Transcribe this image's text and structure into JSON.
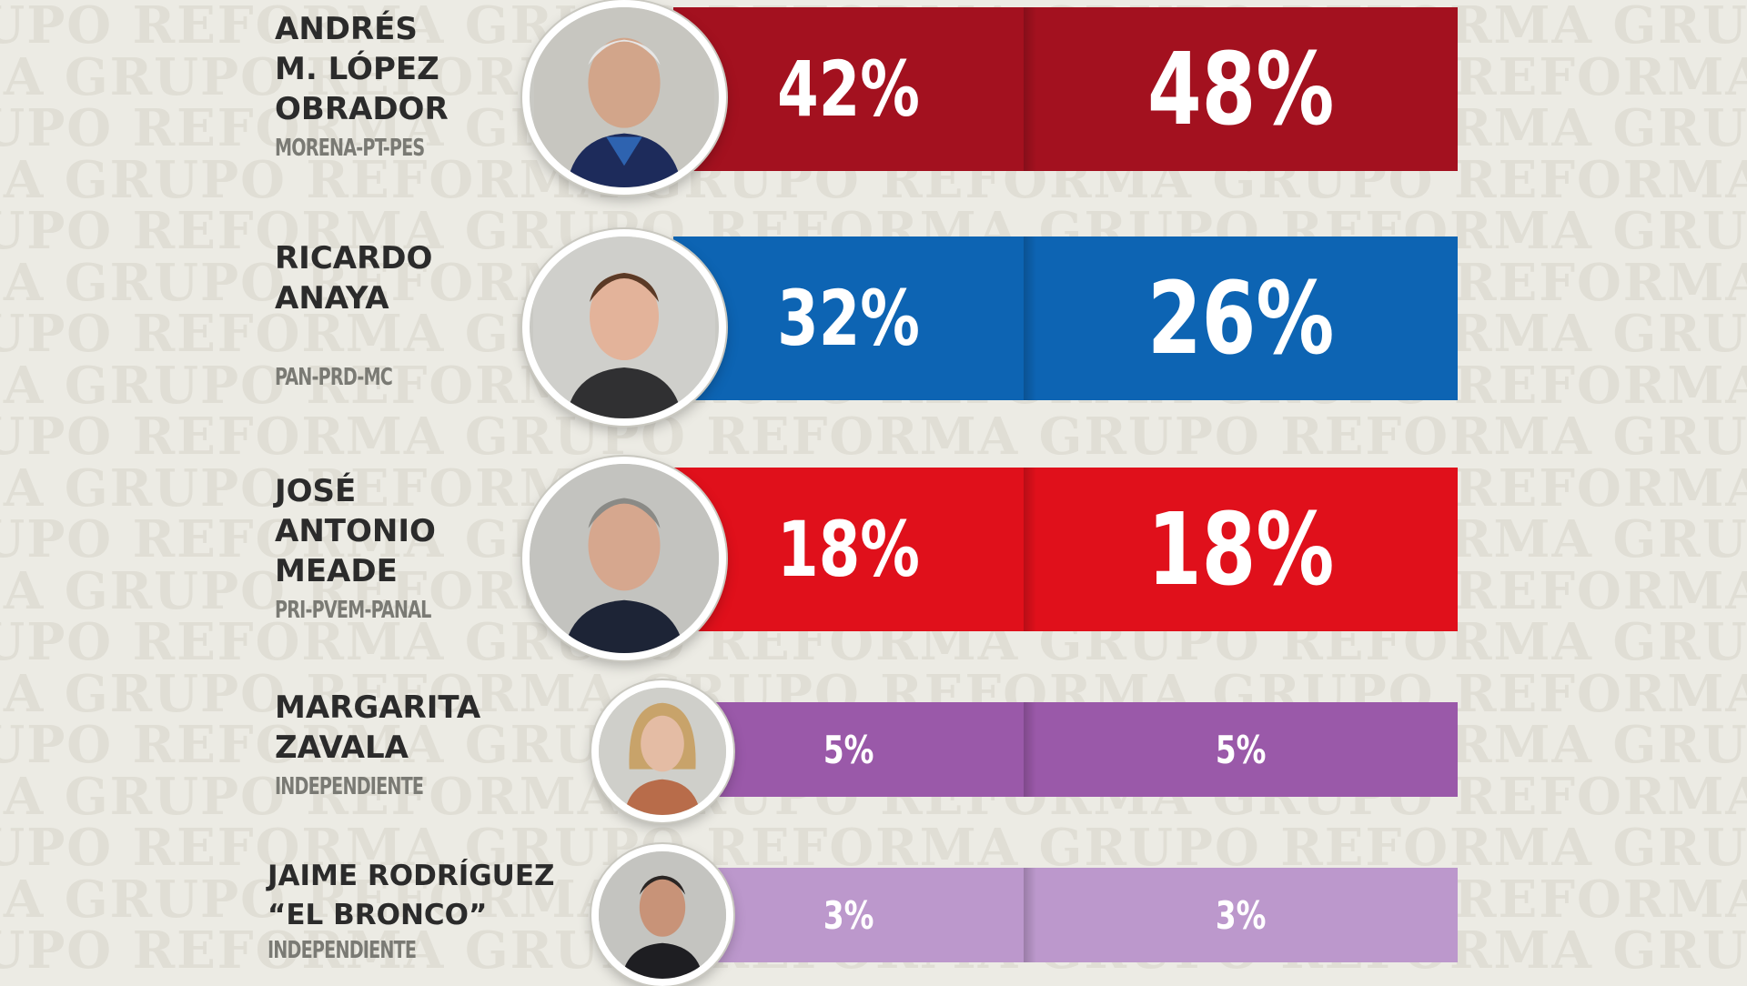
{
  "watermark": "GRUPO REFORMA",
  "chart_data": {
    "type": "bar",
    "categories": [
      "ANDRÉS M. LÓPEZ OBRADOR",
      "RICARDO ANAYA",
      "JOSÉ ANTONIO MEADE",
      "MARGARITA ZAVALA",
      "JAIME RODRÍGUEZ “EL BRONCO”"
    ],
    "series": [
      {
        "values": [
          42,
          32,
          18,
          5,
          3
        ]
      },
      {
        "values": [
          48,
          26,
          18,
          5,
          3
        ]
      }
    ]
  },
  "candidates": [
    {
      "name": "ANDRÉS\nM. LÓPEZ\nOBRADOR",
      "party": "MORENA-PT-PES",
      "left": "42%",
      "right": "48%",
      "color": "#a3111f",
      "icon": "person-portrait-icon"
    },
    {
      "name": "RICARDO\nANAYA",
      "party": "PAN-PRD-MC",
      "left": "32%",
      "right": "26%",
      "color": "#0d64b3",
      "icon": "person-portrait-icon"
    },
    {
      "name": "JOSÉ\nANTONIO\nMEADE",
      "party": "PRI-PVEM-PANAL",
      "left": "18%",
      "right": "18%",
      "color": "#e0101b",
      "icon": "person-portrait-icon"
    },
    {
      "name": "MARGARITA\nZAVALA",
      "party": "INDEPENDIENTE",
      "left": "5%",
      "right": "5%",
      "color": "#9a59a9",
      "icon": "person-portrait-icon"
    },
    {
      "name": "JAIME RODRÍGUEZ\n“EL BRONCO”",
      "party": "INDEPENDIENTE",
      "left": "3%",
      "right": "3%",
      "color": "#bc98cc",
      "icon": "person-portrait-icon"
    }
  ]
}
